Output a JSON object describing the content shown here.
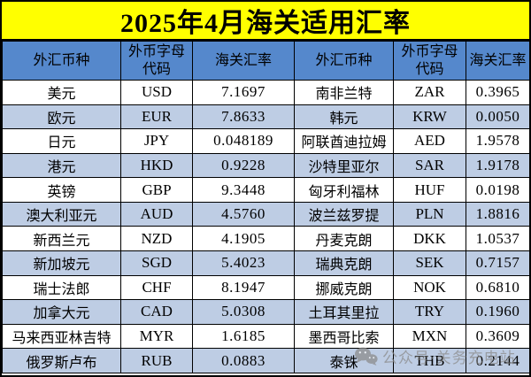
{
  "page_title": "2025年4月海关适用汇率",
  "chart_data": {
    "type": "table",
    "title": "2025年4月海关适用汇率",
    "columns": [
      "外汇币种",
      "外币字母代码",
      "海关汇率",
      "外汇币种",
      "外币字母代码",
      "海关汇率"
    ],
    "rows": [
      [
        "美元",
        "USD",
        "7.1697",
        "南非兰特",
        "ZAR",
        "0.3965"
      ],
      [
        "欧元",
        "EUR",
        "7.8633",
        "韩元",
        "KRW",
        "0.0050"
      ],
      [
        "日元",
        "JPY",
        "0.048189",
        "阿联酋迪拉姆",
        "AED",
        "1.9578"
      ],
      [
        "港元",
        "HKD",
        "0.9228",
        "沙特里亚尔",
        "SAR",
        "1.9178"
      ],
      [
        "英镑",
        "GBP",
        "9.3448",
        "匈牙利福林",
        "HUF",
        "0.0198"
      ],
      [
        "澳大利亚元",
        "AUD",
        "4.5760",
        "波兰兹罗提",
        "PLN",
        "1.8816"
      ],
      [
        "新西兰元",
        "NZD",
        "4.1905",
        "丹麦克朗",
        "DKK",
        "1.0537"
      ],
      [
        "新加坡元",
        "SGD",
        "5.4023",
        "瑞典克朗",
        "SEK",
        "0.7157"
      ],
      [
        "瑞士法郎",
        "CHF",
        "8.1947",
        "挪威克朗",
        "NOK",
        "0.6810"
      ],
      [
        "加拿大元",
        "CAD",
        "5.0308",
        "土耳其里拉",
        "TRY",
        "0.1960"
      ],
      [
        "马来西亚林吉特",
        "MYR",
        "1.6185",
        "墨西哥比索",
        "MXN",
        "0.3609"
      ],
      [
        "俄罗斯卢布",
        "RUB",
        "0.0883",
        "泰铢",
        "THB",
        "0.2144"
      ]
    ]
  },
  "header_display": [
    "外汇币种",
    "外币字母\n代码",
    "海关汇率",
    "外汇币种",
    "外币字母\n代码",
    "海关汇率"
  ],
  "watermark": {
    "icon": "wechat-icon",
    "text": "公众号·关务充电站"
  },
  "colors": {
    "title_bg": "#FFFF00",
    "header_bg": "#5588CC",
    "row_alt_bg": "#BECDE4",
    "row_bg": "#FFFFFF",
    "border": "#000000",
    "text": "#000000",
    "watermark": "#8A8A8A"
  }
}
